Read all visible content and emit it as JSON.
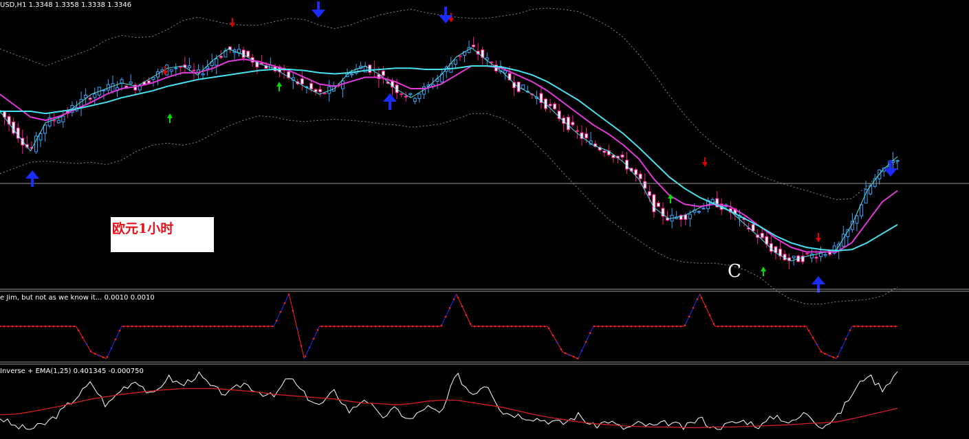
{
  "main_header": "USD,H1  1.3348 1.3358 1.3338 1.3346",
  "sub1_header": "e Jim, but not as we know it...  0.0010 0.0010",
  "sub2_header": "Inverse + EMA(1,25) 0.401345 -0.000750",
  "annotation_cn": "欧元1小时",
  "wave_label": "C",
  "colors": {
    "background": "#000000",
    "bull_candle": "#3aa7ff",
    "bear_candle": "#ff1c8e",
    "ma_fast": "#48e6e8",
    "ma_mid": "#e23ad9",
    "ma_slow": "#49e2ef",
    "bands": "#8a8a8a",
    "arrow_sell": "#e00000",
    "arrow_buy": "#00e000",
    "big_arrow": "#1a2cff",
    "jim_up": "#2a2aff",
    "jim_down": "#ff2020",
    "osc_line": "#ffffff",
    "osc_ema": "#d42020"
  },
  "chart_data": [
    {
      "type": "line",
      "title": "USD,H1  1.3348 1.3358 1.3338 1.3346",
      "series": [
        {
          "values": [
            0.4,
            0.22,
            0.05,
            0.3,
            0.35,
            0.45,
            0.55,
            0.6,
            0.65,
            0.62,
            0.7,
            0.78,
            0.8,
            0.72,
            0.85,
            0.95,
            0.9,
            0.82,
            0.78,
            0.7,
            0.62,
            0.55,
            0.6,
            0.75,
            0.8,
            0.72,
            0.6,
            0.52,
            0.6,
            0.72,
            0.88,
            0.96,
            0.85,
            0.75,
            0.62,
            0.55,
            0.45,
            0.32,
            0.2,
            0.1,
            0.05,
            -0.05,
            -0.2,
            -0.45,
            -0.55,
            -0.52,
            -0.45,
            -0.4,
            -0.48,
            -0.6,
            -0.72,
            -0.85,
            -0.92,
            -0.88,
            -0.85,
            -0.82,
            -0.6,
            -0.3,
            -0.12,
            0.0
          ]
        },
        {
          "values": [
            0.55,
            0.45,
            0.35,
            0.32,
            0.36,
            0.42,
            0.48,
            0.55,
            0.6,
            0.62,
            0.65,
            0.7,
            0.74,
            0.74,
            0.78,
            0.84,
            0.86,
            0.84,
            0.8,
            0.76,
            0.7,
            0.64,
            0.62,
            0.66,
            0.7,
            0.7,
            0.66,
            0.6,
            0.6,
            0.64,
            0.72,
            0.8,
            0.8,
            0.78,
            0.72,
            0.66,
            0.58,
            0.48,
            0.38,
            0.28,
            0.2,
            0.1,
            -0.02,
            -0.2,
            -0.34,
            -0.42,
            -0.44,
            -0.42,
            -0.44,
            -0.52,
            -0.62,
            -0.72,
            -0.8,
            -0.84,
            -0.84,
            -0.84,
            -0.76,
            -0.58,
            -0.4,
            -0.3
          ]
        },
        {
          "values": [
            0.4,
            0.4,
            0.4,
            0.38,
            0.4,
            0.42,
            0.45,
            0.48,
            0.52,
            0.55,
            0.58,
            0.62,
            0.65,
            0.68,
            0.7,
            0.72,
            0.74,
            0.76,
            0.77,
            0.77,
            0.76,
            0.74,
            0.73,
            0.74,
            0.76,
            0.77,
            0.78,
            0.78,
            0.77,
            0.77,
            0.78,
            0.8,
            0.8,
            0.79,
            0.76,
            0.72,
            0.66,
            0.58,
            0.5,
            0.4,
            0.3,
            0.2,
            0.08,
            -0.05,
            -0.18,
            -0.28,
            -0.36,
            -0.42,
            -0.48,
            -0.55,
            -0.62,
            -0.7,
            -0.76,
            -0.8,
            -0.82,
            -0.83,
            -0.82,
            -0.76,
            -0.68,
            -0.6
          ]
        }
      ]
    },
    {
      "type": "line",
      "title": "e Jim, but not as we know it...  0.0010 0.0010",
      "series": [
        {
          "values": [
            0.0,
            0.0,
            0.0,
            0.0,
            0.0,
            0.0,
            -0.8,
            -1.0,
            0.0,
            0.0,
            0.0,
            0.0,
            0.0,
            0.0,
            0.0,
            0.0,
            0.0,
            0.0,
            0.0,
            1.0,
            -1.0,
            0.0,
            0.0,
            0.0,
            0.0,
            0.0,
            0.0,
            0.0,
            0.0,
            0.0,
            1.0,
            0.0,
            0.0,
            0.0,
            0.0,
            0.0,
            0.0,
            -0.8,
            -1.0,
            0.0,
            0.0,
            0.0,
            0.0,
            0.0,
            0.0,
            0.0,
            1.0,
            0.0,
            0.0,
            0.0,
            0.0,
            0.0,
            0.0,
            0.0,
            -0.8,
            -1.0,
            0.0,
            0.0,
            0.0,
            0.0
          ]
        }
      ]
    },
    {
      "type": "line",
      "title": "Inverse + EMA(1,25) 0.401345 -0.000750",
      "series": [
        {
          "values": [
            0.2,
            0.05,
            0.0,
            0.1,
            0.3,
            0.55,
            0.8,
            0.4,
            0.7,
            0.85,
            0.55,
            0.9,
            0.75,
            0.95,
            0.7,
            0.6,
            0.8,
            0.65,
            0.55,
            0.9,
            0.6,
            0.4,
            0.65,
            0.3,
            0.55,
            0.2,
            0.35,
            0.15,
            0.4,
            0.25,
            0.95,
            0.6,
            0.8,
            0.3,
            0.25,
            0.2,
            0.15,
            0.1,
            0.25,
            0.05,
            0.15,
            0.0,
            0.1,
            0.05,
            0.12,
            0.02,
            0.2,
            0.0,
            0.1,
            0.15,
            0.05,
            0.25,
            0.1,
            0.3,
            0.05,
            0.2,
            0.6,
            0.95,
            0.7,
            0.98
          ]
        },
        {
          "values": [
            0.25,
            0.26,
            0.3,
            0.35,
            0.4,
            0.46,
            0.52,
            0.56,
            0.6,
            0.63,
            0.66,
            0.68,
            0.7,
            0.7,
            0.7,
            0.68,
            0.66,
            0.64,
            0.6,
            0.58,
            0.56,
            0.54,
            0.52,
            0.48,
            0.45,
            0.44,
            0.42,
            0.44,
            0.48,
            0.5,
            0.5,
            0.46,
            0.42,
            0.38,
            0.32,
            0.26,
            0.21,
            0.17,
            0.13,
            0.1,
            0.08,
            0.06,
            0.05,
            0.04,
            0.04,
            0.03,
            0.03,
            0.04,
            0.04,
            0.05,
            0.06,
            0.07,
            0.08,
            0.1,
            0.11,
            0.13,
            0.18,
            0.24,
            0.3,
            0.36
          ]
        }
      ]
    }
  ]
}
